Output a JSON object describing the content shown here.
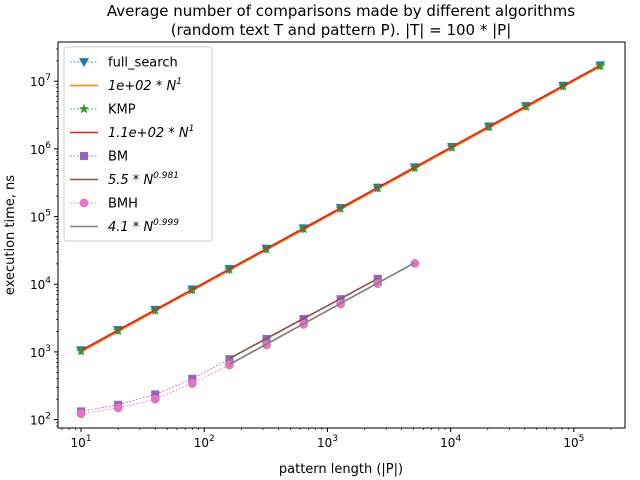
{
  "chart_data": {
    "type": "line",
    "title_line1": "Average number of comparisons made by different algorithms",
    "title_line2": "(random text T and pattern P). |T| = 100 * |P|",
    "xlabel": "pattern length (|P|)",
    "ylabel": "execution time, ns",
    "xscale": "log",
    "yscale": "log",
    "xlim": [
      6.5,
      260000
    ],
    "ylim": [
      75,
      38000000
    ],
    "xticks": [
      {
        "value": 10,
        "base": "10",
        "exp": "1"
      },
      {
        "value": 100,
        "base": "10",
        "exp": "2"
      },
      {
        "value": 1000,
        "base": "10",
        "exp": "3"
      },
      {
        "value": 10000,
        "base": "10",
        "exp": "4"
      },
      {
        "value": 100000,
        "base": "10",
        "exp": "5"
      }
    ],
    "yticks": [
      {
        "value": 100,
        "base": "10",
        "exp": "2"
      },
      {
        "value": 1000,
        "base": "10",
        "exp": "3"
      },
      {
        "value": 10000,
        "base": "10",
        "exp": "4"
      },
      {
        "value": 100000,
        "base": "10",
        "exp": "5"
      },
      {
        "value": 1000000,
        "base": "10",
        "exp": "6"
      },
      {
        "value": 10000000,
        "base": "10",
        "exp": "7"
      }
    ],
    "grid": false,
    "legend_position": "top-left",
    "series": [
      {
        "name": "full_search",
        "kind": "markers",
        "marker": "triangle-down",
        "color": "#1f77b4",
        "x": [
          10,
          20,
          40,
          80,
          160,
          320,
          640,
          1280,
          2560,
          5120,
          10240,
          20480,
          40960,
          81920,
          163840
        ],
        "y": [
          1060,
          2110,
          4200,
          8400,
          16800,
          33600,
          67200,
          134000,
          268000,
          537000,
          1070000,
          2150000,
          4300000,
          8600000,
          17200000
        ]
      },
      {
        "name": "1e+02 * N^1",
        "kind": "fit",
        "color": "#ff7f0e",
        "coef": 100,
        "power": 1.0,
        "xrange": [
          10,
          163840
        ],
        "label_parts": [
          "1e+02 * N",
          "1"
        ]
      },
      {
        "name": "KMP",
        "kind": "markers",
        "marker": "star",
        "color": "#2ca02c",
        "x": [
          10,
          20,
          40,
          80,
          160,
          320,
          640,
          1280,
          2560,
          5120,
          10240,
          20480,
          40960,
          81920,
          163840
        ],
        "y": [
          1030,
          2050,
          4100,
          8200,
          16400,
          32800,
          65600,
          131000,
          262000,
          525000,
          1050000,
          2100000,
          4200000,
          8400000,
          16800000
        ]
      },
      {
        "name": "1.1e+02 * N^1",
        "kind": "fit",
        "color": "#d62728",
        "coef": 105,
        "power": 1.0,
        "xrange": [
          10,
          163840
        ],
        "label_parts": [
          "1.1e+02 * N",
          "1"
        ]
      },
      {
        "name": "BM",
        "kind": "markers",
        "marker": "square",
        "color": "#9467bd",
        "x": [
          10,
          20,
          40,
          80,
          160,
          320,
          640,
          1280,
          2560
        ],
        "y": [
          132,
          165,
          235,
          400,
          780,
          1550,
          3050,
          6000,
          12000
        ]
      },
      {
        "name": "5.5 * N^0.981",
        "kind": "fit",
        "color": "#8c564b",
        "coef": 5.5,
        "power": 0.981,
        "xrange": [
          160,
          2560
        ],
        "label_parts": [
          "5.5 * N",
          "0.981"
        ]
      },
      {
        "name": "BMH",
        "kind": "markers",
        "marker": "circle",
        "color": "#e377c2",
        "x": [
          10,
          20,
          40,
          80,
          160,
          320,
          640,
          1280,
          2560,
          5120
        ],
        "y": [
          122,
          148,
          200,
          340,
          640,
          1270,
          2550,
          5100,
          10200,
          20300
        ]
      },
      {
        "name": "4.1 * N^0.999",
        "kind": "fit",
        "color": "#7f7f7f",
        "coef": 4.1,
        "power": 0.999,
        "xrange": [
          160,
          5120
        ],
        "label_parts": [
          "4.1 * N",
          "0.999"
        ]
      }
    ]
  }
}
